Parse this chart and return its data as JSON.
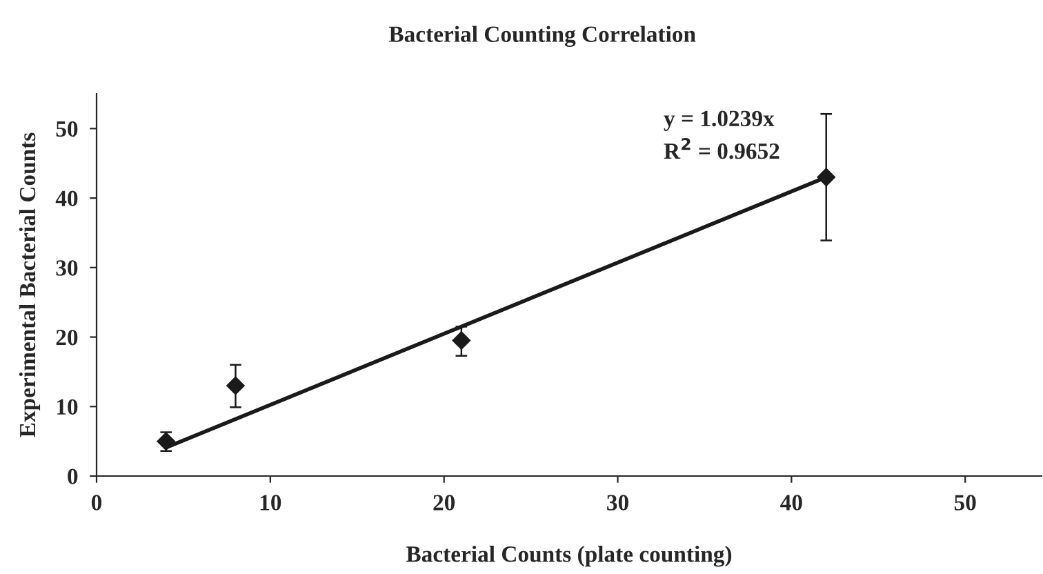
{
  "chart_data": {
    "type": "scatter",
    "title": "Bacterial Counting Correlation",
    "xlabel": "Bacterial Counts (plate counting)",
    "ylabel": "Experimental Bacterial Counts",
    "x": [
      4,
      8,
      21,
      42
    ],
    "series": [
      {
        "color": "#1a1a1a",
        "marker": "diamond",
        "values": [
          5.0,
          13.0,
          19.5,
          43.0
        ],
        "errors": [
          [
            3.6,
            6.3
          ],
          [
            9.9,
            16.0
          ],
          [
            17.3,
            21.5
          ],
          [
            33.9,
            52.1
          ]
        ]
      },
      {
        "type": "line",
        "color": "#1a1a1a",
        "line_style": "solid",
        "x": [
          4,
          42
        ],
        "values": [
          4.1,
          43.0
        ]
      }
    ],
    "annotations": [
      "y = 1.0239x",
      "R$^{2}$ = 0.9652"
    ],
    "xlim": [
      0,
      54.4
    ],
    "ylim": [
      0,
      55
    ],
    "xticks": [
      0,
      10,
      20,
      30,
      40,
      50
    ],
    "yticks": [
      0,
      10,
      20,
      30,
      40,
      50
    ],
    "grid": false,
    "legend": false
  }
}
